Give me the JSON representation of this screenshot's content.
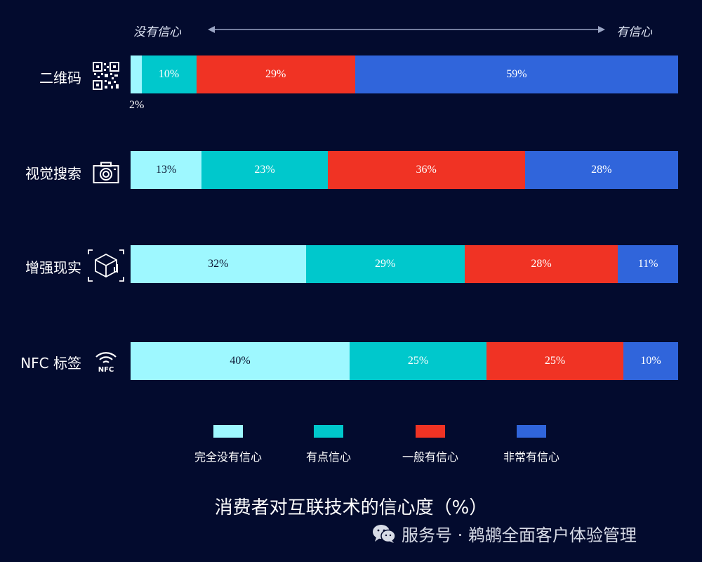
{
  "chart_data": {
    "type": "bar",
    "orientation": "horizontal",
    "stacked": true,
    "title": "消费者对互联技术的信心度（%）",
    "scale": {
      "left_label": "没有信心",
      "right_label": "有信心"
    },
    "categories": [
      "二维码",
      "视觉搜索",
      "增强现实",
      "NFC 标签"
    ],
    "series": [
      {
        "name": "完全没有信心",
        "color": "#9ef8ff",
        "text_color": "#0b1533",
        "values": [
          2,
          13,
          32,
          40
        ]
      },
      {
        "name": "有点信心",
        "color": "#00c8cc",
        "text_color": "#ffffff",
        "values": [
          10,
          23,
          29,
          25
        ]
      },
      {
        "name": "一般有信心",
        "color": "#f03324",
        "text_color": "#ffffff",
        "values": [
          29,
          36,
          28,
          25
        ]
      },
      {
        "name": "非常有信心",
        "color": "#3065db",
        "text_color": "#ffffff",
        "values": [
          59,
          28,
          11,
          10
        ]
      }
    ],
    "value_suffix": "%",
    "icons": [
      "qr-code-icon",
      "camera-icon",
      "ar-cube-icon",
      "nfc-icon"
    ]
  },
  "watermark": {
    "text": "服务号 · 鹈鹕全面客户体验管理",
    "icon": "wechat-icon"
  }
}
